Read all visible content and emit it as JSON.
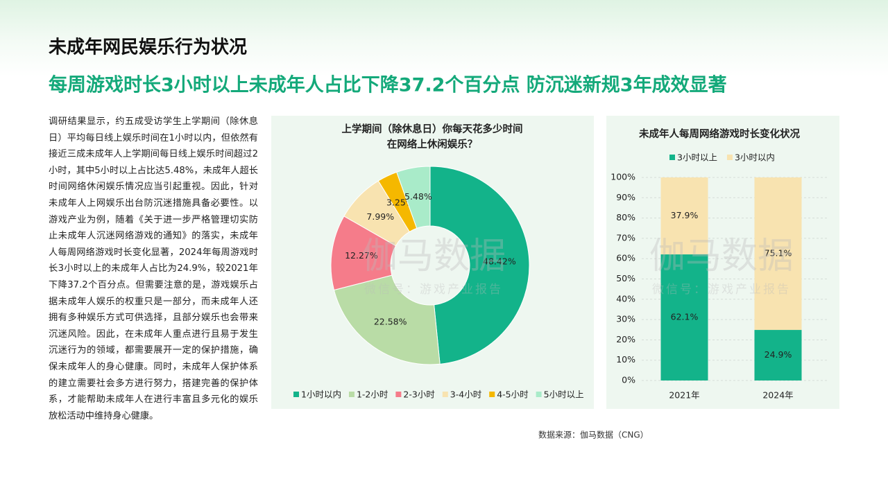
{
  "header": {
    "title": "未成年网民娱乐行为状况",
    "subtitle": "每周游戏时长3小时以上未成年人占比下降37.2个百分点  防沉迷新规3年成效显著"
  },
  "body": "调研结果显示，约五成受访学生上学期间（除休息日）平均每日线上娱乐时间在1小时以内，但依然有接近三成未成年人上学期间每日线上娱乐时间超过2小时，其中5小时以上占比达5.48%，未成年人超长时间网络休闲娱乐情况应当引起重视。因此，针对未成年人上网娱乐出台防沉迷措施具备必要性。以游戏产业为例，随着《关于进一步严格管理切实防止未成年人沉迷网络游戏的通知》的落实，未成年人每周网络游戏时长变化显著，2024年每周游戏时长3小时以上的未成年人占比为24.9%，较2021年下降37.2个百分点。但需要注意的是，游戏娱乐占据未成年人娱乐的权重只是一部分，而未成年人还拥有多种娱乐方式可供选择，且部分娱乐也会带来沉迷风险。因此，在未成年人重点进行且易于发生沉迷行为的领域，都需要展开一定的保护措施，确保未成年人的身心健康。同时，未成年人保护体系的建立需要社会多方进行努力，搭建完善的保护体系，才能帮助未成年人在进行丰富且多元化的娱乐放松活动中维持身心健康。",
  "watermark": {
    "name": "伽马数据",
    "account": "微信号：游戏产业报告"
  },
  "source": "数据来源：伽马数据（CNG）",
  "chart_data": [
    {
      "type": "pie",
      "title": [
        "上学期间（除休息日）你每天花多少时间",
        "在网络上休闲娱乐？"
      ],
      "categories": [
        "1小时以内",
        "1-2小时",
        "2-3小时",
        "3-4小时",
        "4-5小时",
        "5小时以上"
      ],
      "values": [
        48.42,
        22.58,
        12.27,
        7.99,
        3.25,
        5.48
      ],
      "value_labels": [
        "48.42%",
        "22.58%",
        "12.27%",
        "7.99%",
        "3.25%",
        "5.48%"
      ],
      "colors": [
        "#13b38a",
        "#b9dca6",
        "#f57c8a",
        "#f8e3b0",
        "#f5b800",
        "#a9ebc9"
      ]
    },
    {
      "type": "bar",
      "stacked": true,
      "title": "未成年人每周网络游戏时长变化状况",
      "categories": [
        "2021年",
        "2024年"
      ],
      "series": [
        {
          "name": "3小时以上",
          "color": "#13b38a",
          "values": [
            62.1,
            24.9
          ],
          "value_labels": [
            "62.1%",
            "24.9%"
          ]
        },
        {
          "name": "3小时以内",
          "color": "#f8e3b0",
          "values": [
            37.9,
            75.1
          ],
          "value_labels": [
            "37.9%",
            "75.1%"
          ]
        }
      ],
      "ylim": [
        0,
        100
      ],
      "yticks": [
        {
          "value": 0,
          "label": "0%"
        },
        {
          "value": 10,
          "label": "10%"
        },
        {
          "value": 20,
          "label": "20%"
        },
        {
          "value": 30,
          "label": "30%"
        },
        {
          "value": 40,
          "label": "40%"
        },
        {
          "value": 50,
          "label": "50%"
        },
        {
          "value": 60,
          "label": "60%"
        },
        {
          "value": 70,
          "label": "70%"
        },
        {
          "value": 80,
          "label": "80%"
        },
        {
          "value": 90,
          "label": "90%"
        },
        {
          "value": 100,
          "label": "100%"
        }
      ],
      "grid": true
    }
  ]
}
